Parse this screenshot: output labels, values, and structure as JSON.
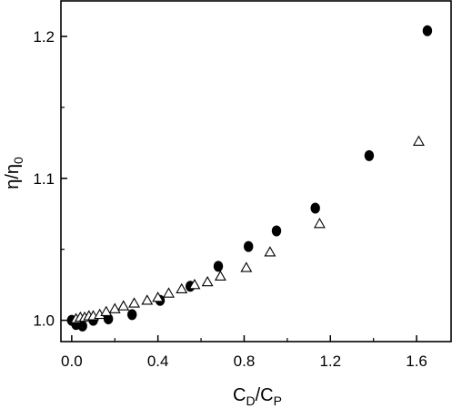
{
  "chart_data": {
    "type": "scatter",
    "xlabel": {
      "main": "C",
      "sub1": "D",
      "slash": "/C",
      "sub2": "P"
    },
    "ylabel": {
      "main": "η/η",
      "sub": "0"
    },
    "xlim": [
      -0.05,
      1.76
    ],
    "ylim": [
      0.985,
      1.225
    ],
    "x_ticks": [
      0.0,
      0.4,
      0.8,
      1.2,
      1.6
    ],
    "x_tick_labels": [
      "0.0",
      "0.4",
      "0.8",
      "1.2",
      "1.6"
    ],
    "y_ticks": [
      1.0,
      1.1,
      1.2
    ],
    "y_tick_labels": [
      "1.0",
      "1.1",
      "1.2"
    ],
    "grid": false,
    "series": [
      {
        "marker": "filled-circle",
        "color": "#000000",
        "points": [
          [
            0.0,
            1.0
          ],
          [
            0.02,
            0.997
          ],
          [
            0.05,
            0.996
          ],
          [
            0.1,
            1.0
          ],
          [
            0.17,
            1.001
          ],
          [
            0.28,
            1.004
          ],
          [
            0.41,
            1.014
          ],
          [
            0.55,
            1.024
          ],
          [
            0.68,
            1.038
          ],
          [
            0.82,
            1.052
          ],
          [
            0.95,
            1.063
          ],
          [
            1.13,
            1.079
          ],
          [
            1.38,
            1.116
          ],
          [
            1.65,
            1.204
          ]
        ]
      },
      {
        "marker": "open-triangle",
        "color": "#000000",
        "points": [
          [
            0.02,
            1.001
          ],
          [
            0.04,
            1.002
          ],
          [
            0.06,
            1.002
          ],
          [
            0.08,
            1.003
          ],
          [
            0.1,
            1.003
          ],
          [
            0.13,
            1.004
          ],
          [
            0.16,
            1.006
          ],
          [
            0.2,
            1.008
          ],
          [
            0.24,
            1.01
          ],
          [
            0.29,
            1.012
          ],
          [
            0.35,
            1.014
          ],
          [
            0.4,
            1.016
          ],
          [
            0.45,
            1.019
          ],
          [
            0.51,
            1.022
          ],
          [
            0.57,
            1.025
          ],
          [
            0.63,
            1.027
          ],
          [
            0.69,
            1.031
          ],
          [
            0.81,
            1.037
          ],
          [
            0.92,
            1.048
          ],
          [
            1.15,
            1.068
          ],
          [
            1.61,
            1.126
          ]
        ]
      }
    ]
  }
}
